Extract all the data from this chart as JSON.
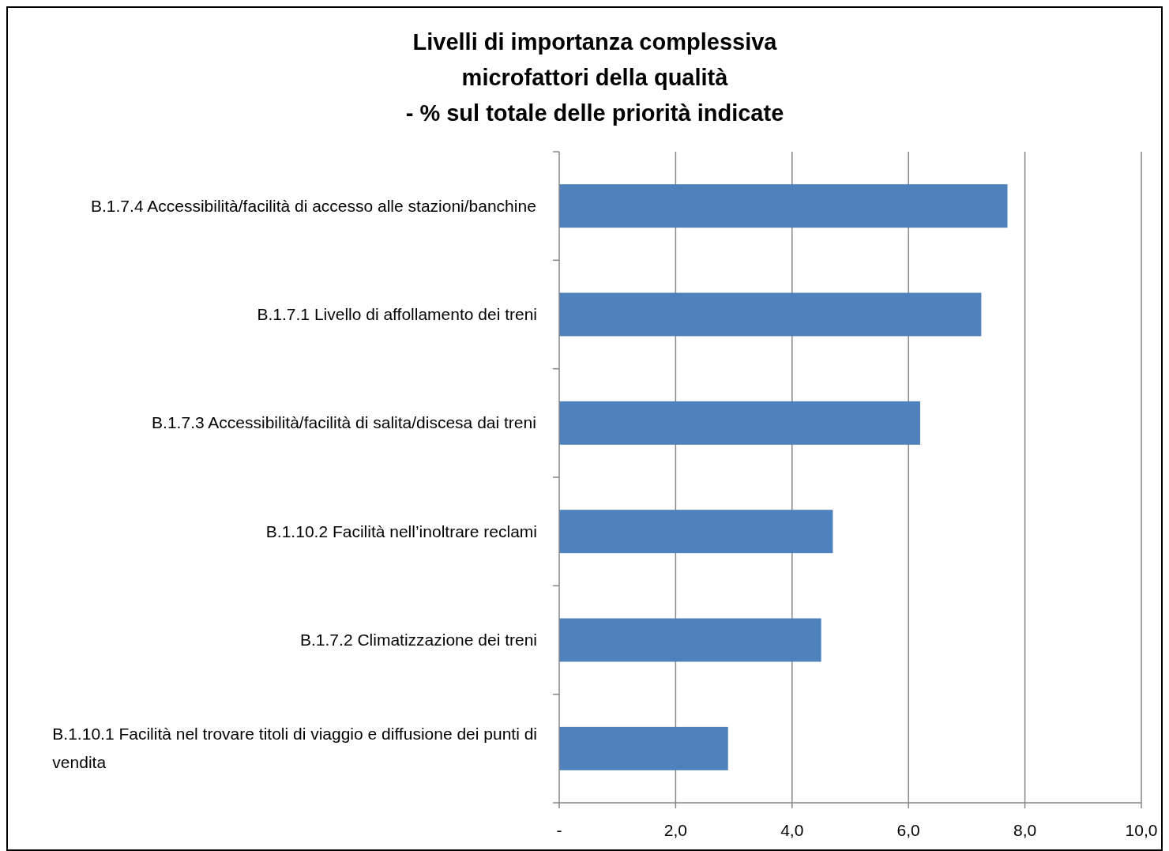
{
  "chart_data": {
    "type": "bar",
    "orientation": "horizontal",
    "title": "Livelli di importanza complessiva\nmicrofattori della qualità\n- % sul totale  delle priorità indicate",
    "categories": [
      "B.1.7.4 Accessibilità/facilità di accesso alle stazioni/banchine",
      "B.1.7.1 Livello di affollamento dei treni",
      "B.1.7.3 Accessibilità/facilità di salita/discesa dai treni",
      "B.1.10.2 Facilità nell’inoltrare reclami",
      "B.1.7.2 Climatizzazione dei treni",
      "B.1.10.1 Facilità nel trovare titoli di viaggio e diffusione dei punti di vendita"
    ],
    "values": [
      7.7,
      7.25,
      6.2,
      4.7,
      4.5,
      2.9
    ],
    "color": "#4f81bd",
    "xlim": [
      0,
      10
    ],
    "xticks": [
      {
        "value": 0,
        "label": "-"
      },
      {
        "value": 2,
        "label": "2,0"
      },
      {
        "value": 4,
        "label": "4,0"
      },
      {
        "value": 6,
        "label": "6,0"
      },
      {
        "value": 8,
        "label": "8,0"
      },
      {
        "value": 10,
        "label": "10,0"
      }
    ],
    "grid": "x"
  }
}
